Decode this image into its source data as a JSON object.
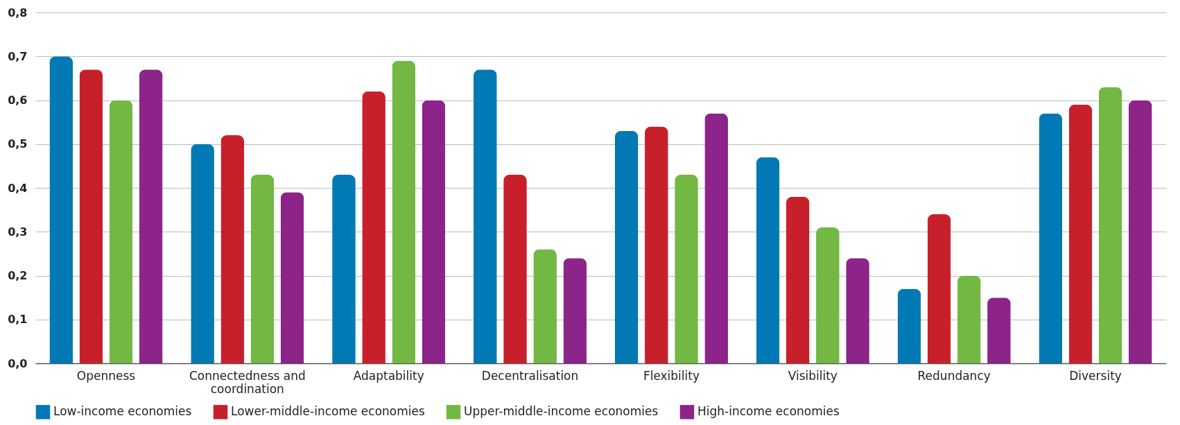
{
  "chart_data": {
    "type": "bar",
    "categories": [
      "Openness",
      "Connectedness and coordination",
      "Adaptability",
      "Decentralisation",
      "Flexibility",
      "Visibility",
      "Redundancy",
      "Diversity"
    ],
    "series": [
      {
        "name": "Low-income economies",
        "color": "#0079b5",
        "values": [
          0.7,
          0.5,
          0.43,
          0.67,
          0.53,
          0.47,
          0.17,
          0.57
        ]
      },
      {
        "name": "Lower-middle-income economies",
        "color": "#c8202b",
        "values": [
          0.67,
          0.52,
          0.62,
          0.43,
          0.54,
          0.38,
          0.34,
          0.59
        ]
      },
      {
        "name": "Upper-middle-income economies",
        "color": "#72b843",
        "values": [
          0.6,
          0.43,
          0.69,
          0.26,
          0.43,
          0.31,
          0.2,
          0.63
        ]
      },
      {
        "name": "High-income economies",
        "color": "#8c2489",
        "values": [
          0.67,
          0.39,
          0.6,
          0.24,
          0.57,
          0.24,
          0.15,
          0.6
        ]
      }
    ],
    "ylim": [
      0,
      0.8
    ],
    "yticks": [
      {
        "value": 0,
        "label": "0,0"
      },
      {
        "value": 0.1,
        "label": "0,1"
      },
      {
        "value": 0.2,
        "label": "0,2"
      },
      {
        "value": 0.3,
        "label": "0,3"
      },
      {
        "value": 0.4,
        "label": "0,4"
      },
      {
        "value": 0.5,
        "label": "0,5"
      },
      {
        "value": 0.6,
        "label": "0,6"
      },
      {
        "value": 0.7,
        "label": "0,7"
      },
      {
        "value": 0.8,
        "label": "0,8"
      }
    ],
    "grid": "y",
    "legend": "bottom"
  }
}
